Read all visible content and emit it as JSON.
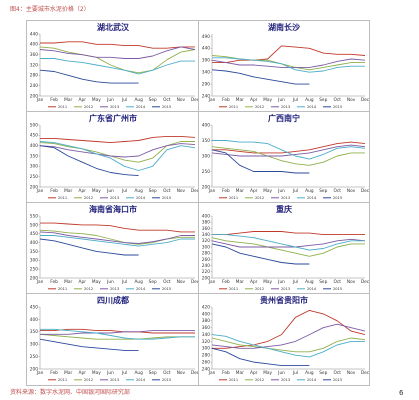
{
  "page": {
    "caption": "图4：主要城市水泥价格（2）",
    "source": "资料来源：数字水泥网、中国银河国际研究部",
    "page_number": "6"
  },
  "series_meta": [
    {
      "name": "2011",
      "color": "#c0392b"
    },
    {
      "name": "2012",
      "color": "#8fb04a"
    },
    {
      "name": "2013",
      "color": "#7d5ba6"
    },
    {
      "name": "2014",
      "color": "#4cadc9"
    },
    {
      "name": "2015",
      "color": "#2b4a9a"
    }
  ],
  "chart_data": [
    {
      "type": "line",
      "title": "湖北武汉",
      "xlabel": "",
      "ylabel": "",
      "categories": [
        "Jan",
        "Feb",
        "Mar",
        "Apr",
        "May",
        "Jun",
        "Jul",
        "Aug",
        "Sep",
        "Oct",
        "Nov",
        "Dec"
      ],
      "ylim": [
        200,
        440
      ],
      "yticks": [
        200,
        240,
        280,
        320,
        360,
        400,
        440
      ],
      "legend": "bottom",
      "grid": false,
      "series": [
        {
          "name": "2011",
          "values": [
            405,
            405,
            410,
            410,
            400,
            400,
            395,
            395,
            385,
            385,
            390,
            390
          ]
        },
        {
          "name": "2012",
          "values": [
            390,
            385,
            370,
            360,
            350,
            320,
            300,
            290,
            300,
            340,
            370,
            380
          ]
        },
        {
          "name": "2013",
          "values": [
            380,
            375,
            365,
            360,
            350,
            350,
            345,
            345,
            355,
            375,
            390,
            380
          ]
        },
        {
          "name": "2014",
          "values": [
            345,
            345,
            335,
            330,
            320,
            310,
            300,
            285,
            300,
            320,
            335,
            335
          ]
        },
        {
          "name": "2015",
          "values": [
            300,
            295,
            280,
            265,
            255,
            250,
            250,
            250,
            null,
            null,
            null,
            null
          ]
        }
      ]
    },
    {
      "type": "line",
      "title": "湖南长沙",
      "xlabel": "",
      "ylabel": "",
      "categories": [
        "Jan",
        "Feb",
        "Mar",
        "Apr",
        "May",
        "Jun",
        "Jul",
        "Aug",
        "Sep",
        "Oct",
        "Nov",
        "Dec"
      ],
      "ylim": [
        240,
        500
      ],
      "yticks": [
        240,
        290,
        340,
        390,
        440,
        490
      ],
      "legend": "bottom",
      "grid": false,
      "series": [
        {
          "name": "2011",
          "values": [
            380,
            380,
            390,
            390,
            395,
            450,
            445,
            440,
            420,
            415,
            415,
            410
          ]
        },
        {
          "name": "2012",
          "values": [
            410,
            405,
            395,
            390,
            390,
            375,
            360,
            350,
            360,
            370,
            380,
            380
          ]
        },
        {
          "name": "2013",
          "values": [
            390,
            380,
            370,
            370,
            365,
            360,
            360,
            360,
            370,
            385,
            395,
            390
          ]
        },
        {
          "name": "2014",
          "values": [
            400,
            400,
            395,
            390,
            385,
            375,
            350,
            340,
            345,
            360,
            365,
            365
          ]
        },
        {
          "name": "2015",
          "values": [
            350,
            345,
            335,
            320,
            310,
            300,
            290,
            290,
            null,
            null,
            null,
            null
          ]
        }
      ]
    },
    {
      "type": "line",
      "title": "广东省广州市",
      "xlabel": "",
      "ylabel": "",
      "categories": [
        "Jan",
        "Feb",
        "Mar",
        "Apr",
        "May",
        "Jun",
        "Jul",
        "Aug",
        "Sep",
        "Oct",
        "Nov",
        "Dec"
      ],
      "ylim": [
        200,
        500
      ],
      "yticks": [
        200,
        250,
        300,
        350,
        400,
        450,
        500
      ],
      "legend": "bottom",
      "grid": false,
      "series": [
        {
          "name": "2011",
          "values": [
            435,
            435,
            430,
            425,
            420,
            415,
            420,
            425,
            440,
            445,
            445,
            440
          ]
        },
        {
          "name": "2012",
          "values": [
            415,
            410,
            395,
            385,
            370,
            350,
            330,
            320,
            340,
            400,
            420,
            420
          ]
        },
        {
          "name": "2013",
          "values": [
            400,
            395,
            380,
            370,
            360,
            350,
            345,
            350,
            380,
            400,
            410,
            405
          ]
        },
        {
          "name": "2014",
          "values": [
            420,
            415,
            400,
            385,
            360,
            340,
            300,
            280,
            300,
            380,
            400,
            390
          ]
        },
        {
          "name": "2015",
          "values": [
            400,
            390,
            350,
            320,
            290,
            270,
            260,
            255,
            null,
            null,
            null,
            null
          ]
        }
      ]
    },
    {
      "type": "line",
      "title": "广西南宁",
      "xlabel": "",
      "ylabel": "",
      "categories": [
        "Jan",
        "Feb",
        "Mar",
        "Apr",
        "May",
        "Jun",
        "Jul",
        "Aug",
        "Sep",
        "Oct",
        "Nov",
        "Dec"
      ],
      "ylim": [
        200,
        400
      ],
      "yticks": [
        200,
        250,
        300,
        350,
        400
      ],
      "legend": "bottom",
      "grid": false,
      "series": [
        {
          "name": "2011",
          "values": [
            320,
            320,
            315,
            310,
            310,
            310,
            315,
            320,
            330,
            340,
            345,
            340
          ]
        },
        {
          "name": "2012",
          "values": [
            330,
            325,
            320,
            315,
            300,
            285,
            275,
            270,
            280,
            300,
            310,
            310
          ]
        },
        {
          "name": "2013",
          "values": [
            310,
            305,
            300,
            300,
            300,
            300,
            305,
            310,
            320,
            330,
            335,
            330
          ]
        },
        {
          "name": "2014",
          "values": [
            350,
            350,
            345,
            345,
            340,
            320,
            300,
            290,
            305,
            325,
            330,
            325
          ]
        },
        {
          "name": "2015",
          "values": [
            320,
            310,
            270,
            250,
            250,
            250,
            245,
            245,
            null,
            null,
            null,
            null
          ]
        }
      ]
    },
    {
      "type": "line",
      "title": "海南省海口市",
      "xlabel": "",
      "ylabel": "",
      "categories": [
        "Jan",
        "Feb",
        "Mar",
        "Apr",
        "May",
        "Jun",
        "Jul",
        "Aug",
        "Sep",
        "Oct",
        "Nov",
        "Dec"
      ],
      "ylim": [
        200,
        550
      ],
      "yticks": [
        200,
        250,
        300,
        350,
        400,
        450,
        500,
        550
      ],
      "legend": "bottom",
      "grid": false,
      "series": [
        {
          "name": "2011",
          "values": [
            510,
            510,
            505,
            500,
            500,
            495,
            480,
            470,
            470,
            470,
            460,
            460
          ]
        },
        {
          "name": "2012",
          "values": [
            470,
            465,
            455,
            450,
            440,
            420,
            400,
            390,
            400,
            420,
            430,
            430
          ]
        },
        {
          "name": "2013",
          "values": [
            460,
            455,
            440,
            430,
            420,
            410,
            400,
            395,
            405,
            420,
            440,
            440
          ]
        },
        {
          "name": "2014",
          "values": [
            440,
            440,
            430,
            420,
            410,
            400,
            390,
            380,
            390,
            400,
            420,
            420
          ]
        },
        {
          "name": "2015",
          "values": [
            420,
            410,
            390,
            370,
            350,
            340,
            330,
            330,
            null,
            null,
            null,
            null
          ]
        }
      ]
    },
    {
      "type": "line",
      "title": "重庆",
      "xlabel": "",
      "ylabel": "",
      "categories": [
        "Jan",
        "Feb",
        "Mar",
        "Apr",
        "May",
        "Jun",
        "Jul",
        "Aug",
        "Sep",
        "Oct",
        "Nov",
        "Dec"
      ],
      "ylim": [
        200,
        400
      ],
      "yticks": [
        200,
        220,
        240,
        260,
        280,
        300,
        320,
        340,
        360,
        380,
        400
      ],
      "legend": "bottom",
      "grid": false,
      "series": [
        {
          "name": "2011",
          "values": [
            340,
            340,
            345,
            350,
            350,
            350,
            345,
            345,
            340,
            340,
            340,
            340
          ]
        },
        {
          "name": "2012",
          "values": [
            330,
            320,
            315,
            310,
            300,
            290,
            280,
            270,
            280,
            300,
            310,
            310
          ]
        },
        {
          "name": "2013",
          "values": [
            320,
            310,
            300,
            300,
            300,
            300,
            300,
            305,
            310,
            320,
            325,
            320
          ]
        },
        {
          "name": "2014",
          "values": [
            340,
            340,
            335,
            330,
            320,
            310,
            300,
            290,
            295,
            310,
            320,
            320
          ]
        },
        {
          "name": "2015",
          "values": [
            310,
            300,
            280,
            270,
            260,
            250,
            245,
            245,
            null,
            null,
            null,
            null
          ]
        }
      ]
    },
    {
      "type": "line",
      "title": "四川成都",
      "xlabel": "",
      "ylabel": "",
      "categories": [
        "Jan",
        "Feb",
        "Mar",
        "Apr",
        "May",
        "Jun",
        "Jul",
        "Aug",
        "Sep",
        "Oct",
        "Nov",
        "Dec"
      ],
      "ylim": [
        200,
        450
      ],
      "yticks": [
        200,
        250,
        300,
        350,
        400,
        450
      ],
      "legend": "bottom",
      "grid": false,
      "series": [
        {
          "name": "2011",
          "values": [
            355,
            355,
            360,
            360,
            355,
            355,
            350,
            350,
            345,
            345,
            345,
            345
          ]
        },
        {
          "name": "2012",
          "values": [
            340,
            335,
            330,
            325,
            320,
            320,
            320,
            320,
            325,
            330,
            330,
            330
          ]
        },
        {
          "name": "2013",
          "values": [
            340,
            340,
            340,
            345,
            345,
            345,
            350,
            350,
            355,
            355,
            355,
            355
          ]
        },
        {
          "name": "2014",
          "values": [
            360,
            360,
            355,
            350,
            345,
            335,
            325,
            320,
            320,
            325,
            330,
            330
          ]
        },
        {
          "name": "2015",
          "values": [
            320,
            310,
            300,
            290,
            285,
            280,
            275,
            275,
            null,
            null,
            null,
            null
          ]
        }
      ]
    },
    {
      "type": "line",
      "title": "贵州省贵阳市",
      "xlabel": "",
      "ylabel": "",
      "categories": [
        "Jan",
        "Feb",
        "Mar",
        "Apr",
        "May",
        "Jun",
        "Jul",
        "Aug",
        "Sep",
        "Oct",
        "Nov",
        "Dec"
      ],
      "ylim": [
        240,
        420
      ],
      "yticks": [
        240,
        260,
        280,
        300,
        320,
        340,
        360,
        380,
        400,
        420
      ],
      "legend": "bottom",
      "grid": false,
      "series": [
        {
          "name": "2011",
          "values": [
            300,
            300,
            305,
            310,
            320,
            340,
            390,
            410,
            400,
            380,
            350,
            340
          ]
        },
        {
          "name": "2012",
          "values": [
            330,
            320,
            310,
            305,
            300,
            295,
            290,
            290,
            300,
            320,
            330,
            325
          ]
        },
        {
          "name": "2013",
          "values": [
            310,
            305,
            300,
            300,
            305,
            310,
            320,
            340,
            360,
            370,
            360,
            350
          ]
        },
        {
          "name": "2014",
          "values": [
            340,
            335,
            320,
            310,
            300,
            290,
            280,
            275,
            290,
            310,
            320,
            320
          ]
        },
        {
          "name": "2015",
          "values": [
            300,
            290,
            270,
            260,
            255,
            250,
            250,
            250,
            null,
            null,
            null,
            null
          ]
        }
      ]
    }
  ]
}
